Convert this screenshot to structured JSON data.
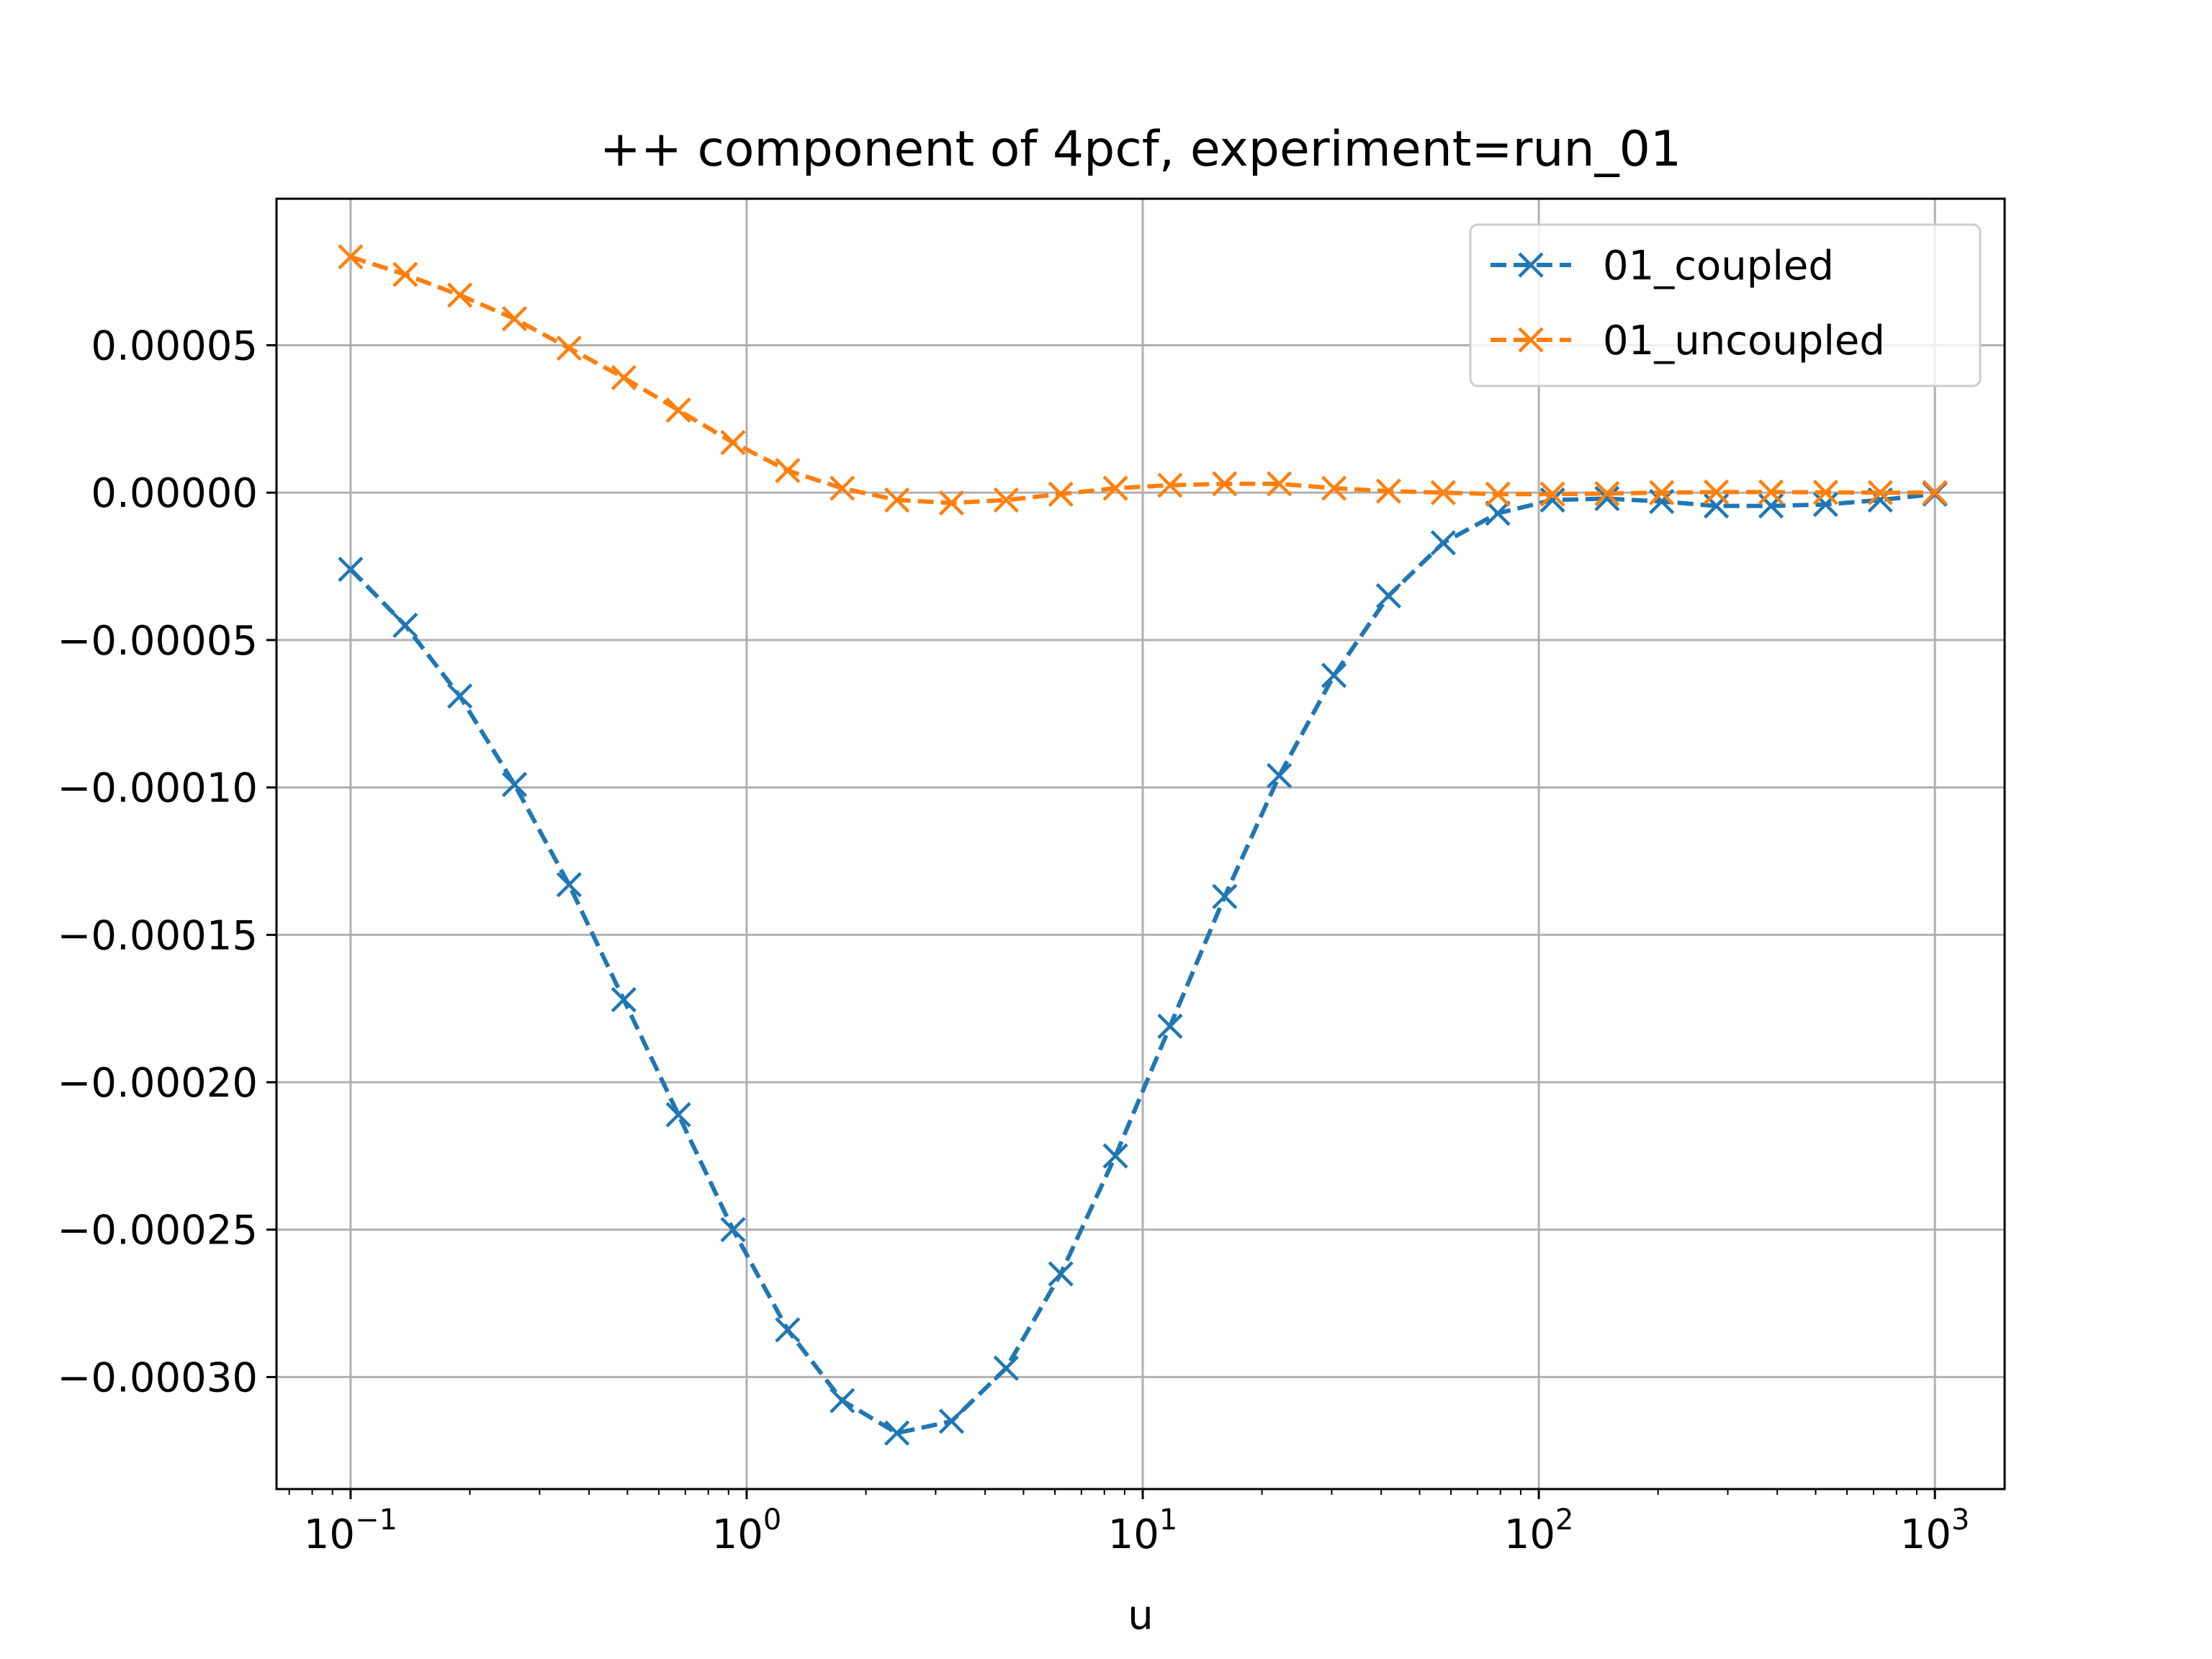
{
  "chart_data": {
    "type": "line",
    "title": "++ component of 4pcf, experiment=run_01",
    "xlabel": "u",
    "ylabel": "",
    "xscale": "log",
    "xlim": [
      0.065,
      1500
    ],
    "ylim": [
      -0.000338,
      9.97e-05
    ],
    "grid": true,
    "legend_position": "top-right",
    "x_tick_labels": [
      {
        "base": "10",
        "exp": "−1"
      },
      {
        "base": "10",
        "exp": "0"
      },
      {
        "base": "10",
        "exp": "1"
      },
      {
        "base": "10",
        "exp": "2"
      },
      {
        "base": "10",
        "exp": "3"
      }
    ],
    "y_tick_labels": [
      "0.00005",
      "0.00000",
      "−0.00005",
      "−0.00010",
      "−0.00015",
      "−0.00020",
      "−0.00025",
      "−0.00030"
    ],
    "x": [
      0.1,
      0.1374,
      0.1887,
      0.2593,
      0.3562,
      0.4894,
      0.6723,
      0.9237,
      1.269,
      1.743,
      2.395,
      3.29,
      4.52,
      6.21,
      8.532,
      11.72,
      16.1,
      22.12,
      30.39,
      41.75,
      57.36,
      78.8,
      108.3,
      148.7,
      204.3,
      280.7,
      385.7,
      529.8,
      727.9,
      1000
    ],
    "series": [
      {
        "name": "01_coupled",
        "color": "#1f77b4",
        "values": [
          -2.6e-05,
          -4.5e-05,
          -6.9e-05,
          -9.9e-05,
          -0.000133,
          -0.000172,
          -0.000211,
          -0.00025,
          -0.000284,
          -0.000308,
          -0.000319,
          -0.000315,
          -0.000297,
          -0.000265,
          -0.000225,
          -0.000181,
          -0.000137,
          -9.6e-05,
          -6.2e-05,
          -3.5e-05,
          -1.7e-05,
          -7e-06,
          -2.5e-06,
          -2e-06,
          -3e-06,
          -4.5e-06,
          -4.5e-06,
          -4e-06,
          -2.5e-06,
          -5e-07
        ]
      },
      {
        "name": "01_uncoupled",
        "color": "#ff7f0e",
        "values": [
          8e-05,
          7.4e-05,
          6.7e-05,
          5.9e-05,
          4.9e-05,
          3.9e-05,
          2.8e-05,
          1.7e-05,
          7.5e-06,
          1.5e-06,
          -2.5e-06,
          -3.5e-06,
          -2.5e-06,
          -5e-07,
          1.5e-06,
          2.5e-06,
          3e-06,
          3e-06,
          1.5e-06,
          5e-07,
          0.0,
          -5e-07,
          -5e-07,
          -3e-07,
          0.0,
          2e-07,
          2e-07,
          1e-07,
          0.0,
          0.0
        ]
      }
    ]
  }
}
